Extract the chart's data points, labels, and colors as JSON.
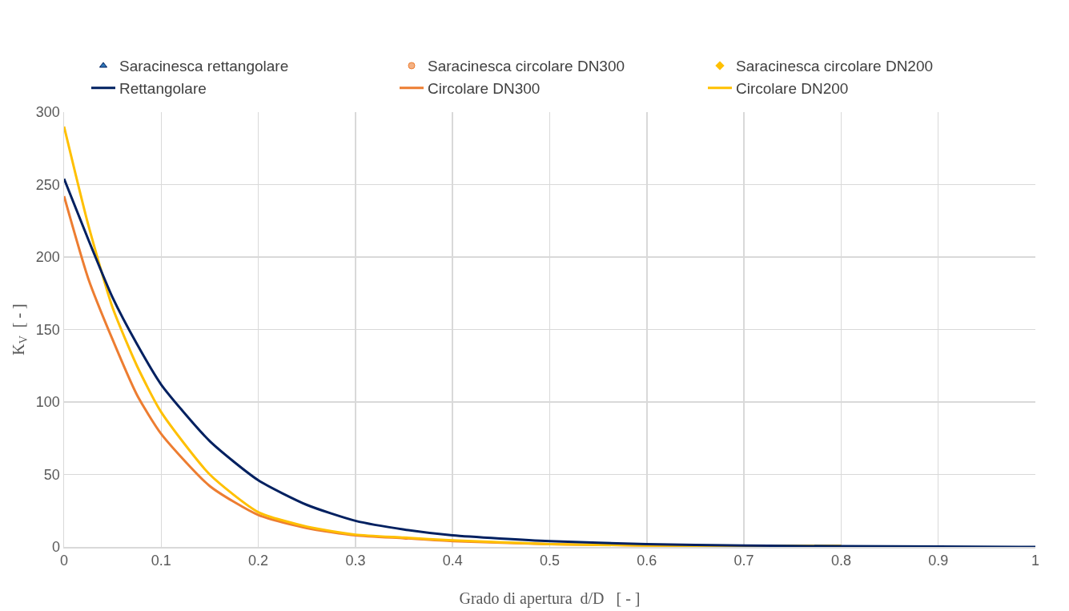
{
  "chart_data": {
    "type": "line",
    "xlabel": "Grado di apertura  d/D   [ - ]",
    "ylabel": "K$_{V}$  [ - ]",
    "xlim": [
      0,
      1
    ],
    "ylim": [
      0,
      300
    ],
    "xticks": [
      0,
      0.1,
      0.2,
      0.3,
      0.4,
      0.5,
      0.6,
      0.7,
      0.8,
      0.9,
      1
    ],
    "yticks": [
      0,
      50,
      100,
      150,
      200,
      250,
      300
    ],
    "grid": true,
    "legend": "top",
    "line_style": "solid",
    "x": [
      0,
      0.025,
      0.05,
      0.075,
      0.1,
      0.15,
      0.2,
      0.25,
      0.3,
      0.35,
      0.4,
      0.5,
      0.6,
      0.7,
      0.8,
      0.9,
      1
    ],
    "series": [
      {
        "name": "Saracinesca rettangolare",
        "type": "scatter",
        "marker": "triangle",
        "color": "#2e75b6",
        "values": [
          null,
          null,
          null,
          null,
          null,
          null,
          null,
          null,
          null,
          null,
          null,
          null,
          null,
          null,
          null,
          null,
          null
        ]
      },
      {
        "name": "Saracinesca circolare DN300",
        "type": "scatter",
        "marker": "circle",
        "color": "#f4b183",
        "values": [
          null,
          null,
          null,
          null,
          null,
          null,
          null,
          null,
          null,
          null,
          null,
          null,
          null,
          null,
          null,
          null,
          null
        ]
      },
      {
        "name": "Saracinesca circolare DN200",
        "type": "scatter",
        "marker": "diamond",
        "color": "#ffc000",
        "values": [
          null,
          null,
          null,
          null,
          null,
          null,
          null,
          null,
          null,
          null,
          null,
          null,
          null,
          null,
          null,
          null,
          null
        ]
      },
      {
        "name": "Rettangolare",
        "color": "#002060",
        "values": [
          254,
          212,
          172,
          140,
          112,
          73,
          46,
          29,
          18,
          12,
          8,
          4,
          2,
          1,
          0.5,
          0.3,
          0
        ]
      },
      {
        "name": "Circolare DN300",
        "color": "#ed7d31",
        "values": [
          242,
          185,
          143,
          105,
          78,
          42,
          22,
          13,
          8,
          6,
          4,
          2,
          1,
          0.6,
          0.5,
          null,
          null
        ]
      },
      {
        "name": "Circolare DN200",
        "color": "#ffc000",
        "values": [
          290,
          222,
          165,
          125,
          93,
          50,
          24,
          14,
          8.5,
          6.5,
          4.5,
          2,
          1,
          0.7,
          0.8,
          null,
          null
        ]
      }
    ]
  }
}
